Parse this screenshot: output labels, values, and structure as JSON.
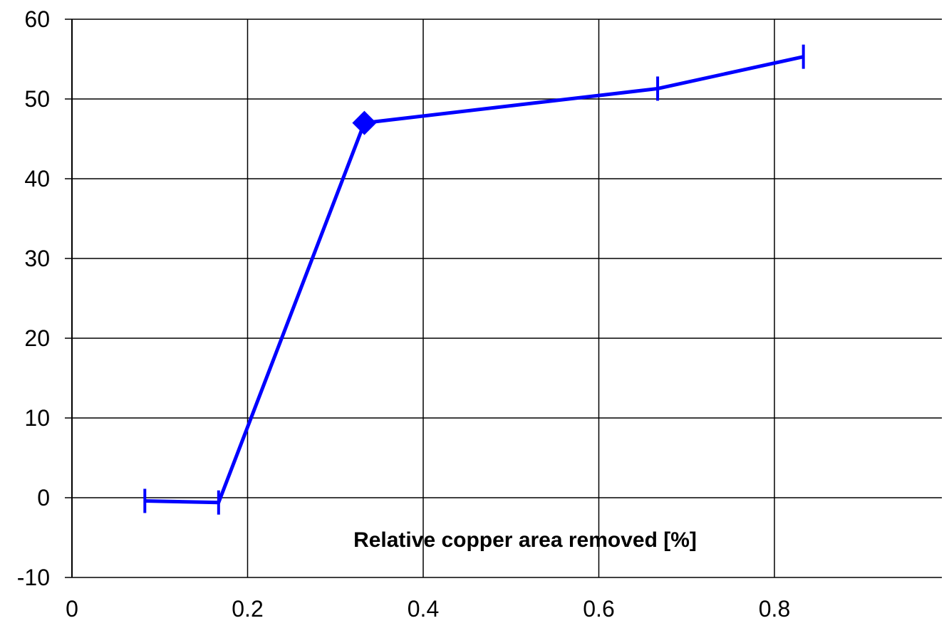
{
  "chart_data": {
    "type": "line",
    "title": "",
    "xlabel": "Relative copper area removed [%]",
    "ylabel": "",
    "xlim": [
      0,
      1.0
    ],
    "ylim": [
      -10,
      60
    ],
    "x_ticks": [
      0,
      0.2,
      0.4,
      0.6,
      0.8
    ],
    "x_tick_labels": [
      "0",
      "0.2",
      "0.4",
      "0.6",
      "0.8"
    ],
    "y_ticks": [
      -10,
      0,
      10,
      20,
      30,
      40,
      50,
      60
    ],
    "y_tick_labels": [
      "-10",
      "0",
      "10",
      "20",
      "30",
      "40",
      "50",
      "60"
    ],
    "grid": true,
    "series": [
      {
        "color": "#0000ff",
        "marker": "dash",
        "highlight_marker_index": 2,
        "points": [
          {
            "x": 0.083,
            "y": -0.4
          },
          {
            "x": 0.167,
            "y": -0.6
          },
          {
            "x": 0.333,
            "y": 47.0
          },
          {
            "x": 0.667,
            "y": 51.3
          },
          {
            "x": 0.833,
            "y": 55.3
          }
        ]
      }
    ]
  }
}
